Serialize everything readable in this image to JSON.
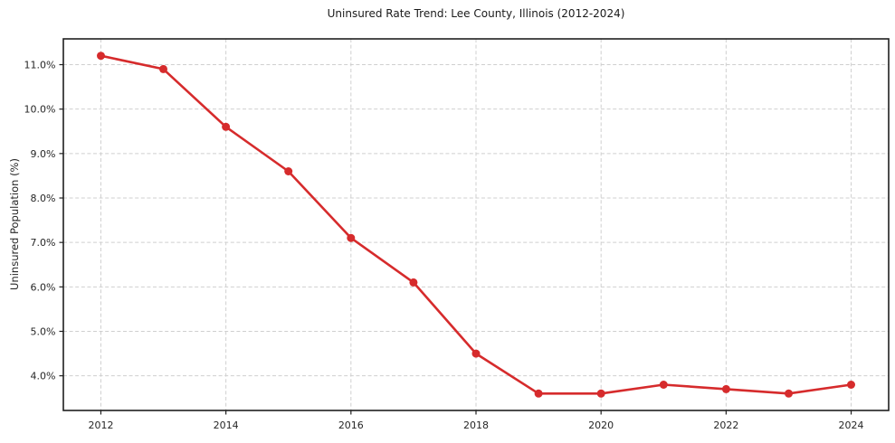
{
  "chart_data": {
    "type": "line",
    "title": "Uninsured Rate Trend: Lee County, Illinois (2012-2024)",
    "xlabel": "",
    "ylabel": "Uninsured Population (%)",
    "x": [
      2012,
      2013,
      2014,
      2015,
      2016,
      2017,
      2018,
      2019,
      2020,
      2021,
      2022,
      2023,
      2024
    ],
    "values": [
      11.2,
      10.9,
      9.6,
      8.6,
      7.1,
      6.1,
      4.5,
      3.6,
      3.6,
      3.8,
      3.7,
      3.6,
      3.8
    ],
    "x_ticks": [
      2012,
      2014,
      2016,
      2018,
      2020,
      2022,
      2024
    ],
    "x_tick_labels": [
      "2012",
      "2014",
      "2016",
      "2018",
      "2020",
      "2022",
      "2024"
    ],
    "y_ticks": [
      4,
      5,
      6,
      7,
      8,
      9,
      10,
      11
    ],
    "y_tick_labels": [
      "4.0%",
      "5.0%",
      "6.0%",
      "7.0%",
      "8.0%",
      "9.0%",
      "10.0%",
      "11.0%"
    ],
    "xlim": [
      2011.4,
      2024.6
    ],
    "ylim": [
      3.22,
      11.58
    ],
    "grid": true,
    "grid_style": "dashed",
    "legend": false,
    "colors": {
      "line": "#d62b2c",
      "marker": "#d62b2c",
      "grid": "#cfcfcf",
      "spine": "#1f1f1f",
      "tick_text": "#262626",
      "background": "#ffffff"
    }
  }
}
